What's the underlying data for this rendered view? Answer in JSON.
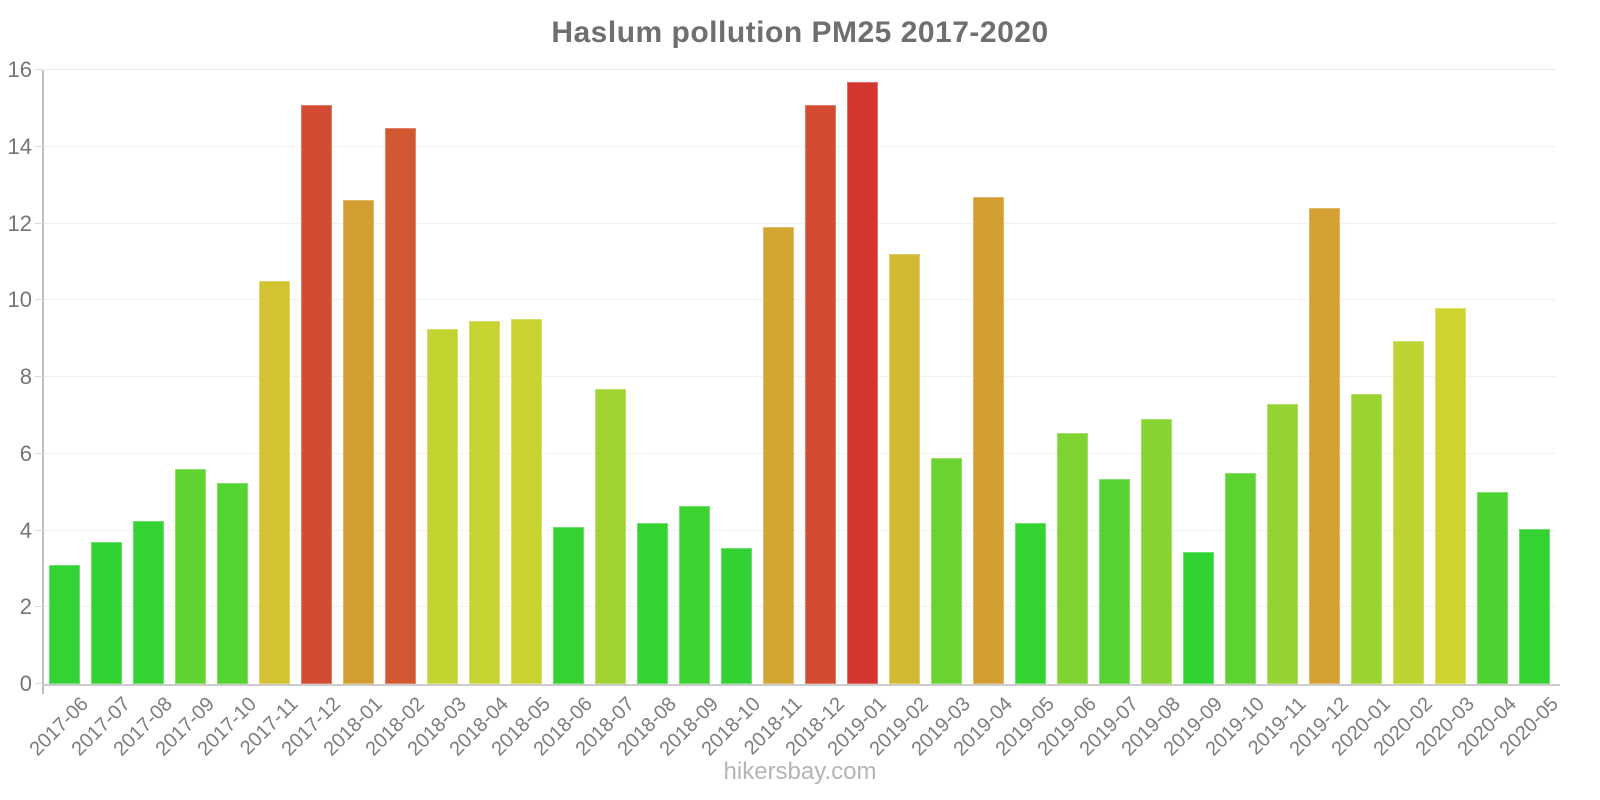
{
  "page": {
    "title": "Haslum pollution PM25 2017-2020",
    "watermark": "hikersbay.com"
  },
  "chart_data": {
    "type": "bar",
    "title": "Haslum pollution PM25 2017-2020",
    "xlabel": "",
    "ylabel": "",
    "categories": [
      "2017-06",
      "2017-07",
      "2017-08",
      "2017-09",
      "2017-10",
      "2017-11",
      "2017-12",
      "2018-01",
      "2018-02",
      "2018-03",
      "2018-04",
      "2018-05",
      "2018-06",
      "2018-07",
      "2018-08",
      "2018-09",
      "2018-10",
      "2018-11",
      "2018-12",
      "2019-01",
      "2019-02",
      "2019-03",
      "2019-04",
      "2019-05",
      "2019-06",
      "2019-07",
      "2019-08",
      "2019-09",
      "2019-10",
      "2019-11",
      "2019-12",
      "2020-01",
      "2020-02",
      "2020-03",
      "2020-04",
      "2020-05"
    ],
    "values": [
      3.1,
      3.7,
      4.25,
      5.6,
      5.25,
      10.5,
      15.1,
      12.6,
      14.5,
      9.25,
      9.45,
      9.5,
      4.1,
      7.7,
      4.2,
      4.65,
      3.55,
      11.9,
      15.1,
      15.7,
      11.2,
      5.9,
      12.7,
      4.2,
      6.55,
      5.35,
      6.9,
      3.45,
      5.5,
      7.3,
      12.4,
      7.55,
      8.95,
      9.8,
      5.0,
      4.05
    ],
    "ylim": [
      0,
      16
    ],
    "yticks": [
      0,
      2,
      4,
      6,
      8,
      10,
      12,
      14,
      16
    ],
    "grid": "horizontal-faint",
    "legend": "none",
    "x_label_rotation_deg": -45,
    "bar_color_scale": {
      "description": "green-to-red gradient mapped to bar value",
      "anchors_value_hue": [
        [
          3.0,
          122
        ],
        [
          4.4,
          118
        ],
        [
          5.0,
          110
        ],
        [
          5.6,
          103
        ],
        [
          6.0,
          97
        ],
        [
          6.9,
          88
        ],
        [
          7.7,
          79
        ],
        [
          9.0,
          68
        ],
        [
          9.8,
          62
        ],
        [
          10.5,
          54
        ],
        [
          11.2,
          50
        ],
        [
          11.9,
          43
        ],
        [
          12.7,
          40
        ],
        [
          14.5,
          14
        ],
        [
          15.1,
          10
        ],
        [
          15.7,
          2
        ]
      ],
      "saturation_pct": 65,
      "lightness_pct": 51,
      "example_low_hex": "#35d035",
      "example_mid_hex": "#d7c32d",
      "example_high_hex": "#d53434"
    },
    "colors": {
      "title_text": "#6f6f6f",
      "tick_label_text": "#757575",
      "x_label_text": "#7d7d7d",
      "axis_line": "#bfbfbf",
      "gridline": "#f1f1f1",
      "watermark_text": "#b5b5b5",
      "background": "#ffffff"
    }
  }
}
